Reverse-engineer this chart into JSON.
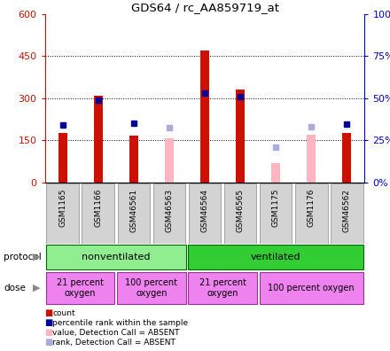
{
  "title": "GDS64 / rc_AA859719_at",
  "samples": [
    "GSM1165",
    "GSM1166",
    "GSM46561",
    "GSM46563",
    "GSM46564",
    "GSM46565",
    "GSM1175",
    "GSM1176",
    "GSM46562"
  ],
  "red_bars": [
    175,
    310,
    168,
    null,
    470,
    330,
    null,
    null,
    175
  ],
  "pink_bars": [
    null,
    null,
    null,
    157,
    null,
    null,
    70,
    170,
    null
  ],
  "blue_squares": [
    205,
    293,
    210,
    null,
    318,
    305,
    null,
    null,
    208
  ],
  "lightblue_squares": [
    null,
    null,
    null,
    195,
    null,
    null,
    125,
    200,
    null
  ],
  "ylim_left": [
    0,
    600
  ],
  "ylim_right": [
    0,
    100
  ],
  "yticks_left": [
    0,
    150,
    300,
    450,
    600
  ],
  "ytick_labels_left": [
    "0",
    "150",
    "300",
    "450",
    "600"
  ],
  "yticks_right": [
    0,
    25,
    50,
    75,
    100
  ],
  "ytick_labels_right": [
    "0%",
    "25%",
    "50%",
    "75%",
    "100%"
  ],
  "protocol_groups": [
    {
      "label": "nonventilated",
      "start": 0,
      "end": 3,
      "color": "#90EE90"
    },
    {
      "label": "ventilated",
      "start": 4,
      "end": 8,
      "color": "#32CD32"
    }
  ],
  "dose_groups": [
    {
      "label": "21 percent\noxygen",
      "start": 0,
      "end": 1,
      "color": "#EE82EE"
    },
    {
      "label": "100 percent\noxygen",
      "start": 2,
      "end": 3,
      "color": "#EE82EE"
    },
    {
      "label": "21 percent\noxygen",
      "start": 4,
      "end": 5,
      "color": "#EE82EE"
    },
    {
      "label": "100 percent oxygen",
      "start": 6,
      "end": 8,
      "color": "#EE82EE"
    }
  ],
  "legend_items": [
    {
      "label": "count",
      "color": "#CC1100"
    },
    {
      "label": "percentile rank within the sample",
      "color": "#000099"
    },
    {
      "label": "value, Detection Call = ABSENT",
      "color": "#FFB6C1"
    },
    {
      "label": "rank, Detection Call = ABSENT",
      "color": "#AAAADD"
    }
  ],
  "bar_width": 0.25,
  "red_color": "#CC1100",
  "pink_color": "#FFB6C1",
  "blue_color": "#000099",
  "lightblue_color": "#AAAADD",
  "grid_color": "#000000",
  "bg_color": "#FFFFFF",
  "plot_bg": "#FFFFFF",
  "left_axis_color": "#CC1100",
  "right_axis_color": "#0000CC",
  "sample_bg": "#D3D3D3",
  "proto_border": "#006600",
  "dose_border": "#993399"
}
